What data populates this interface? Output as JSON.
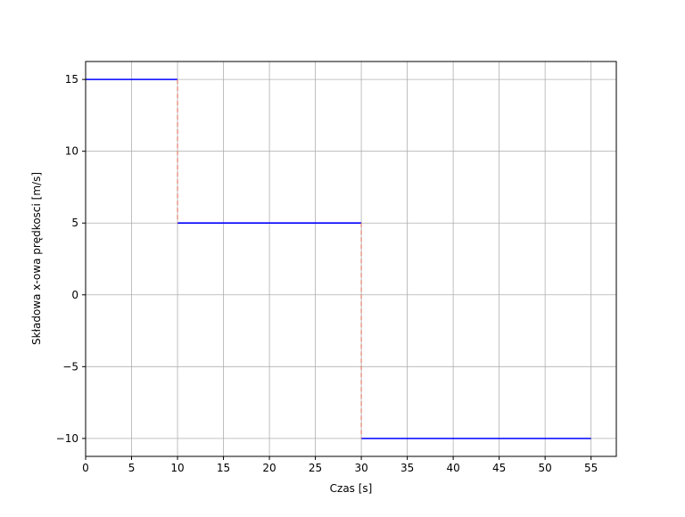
{
  "chart_data": {
    "type": "line",
    "title": "",
    "xlabel": "Czas [s]",
    "ylabel": "Składowa x-owa prędkosci [m/s]",
    "xlim": [
      0,
      57.75
    ],
    "ylim": [
      -11.25,
      16.25
    ],
    "xticks": [
      0,
      5,
      10,
      15,
      20,
      25,
      30,
      35,
      40,
      45,
      50,
      55
    ],
    "yticks": [
      -10,
      -5,
      0,
      5,
      10,
      15
    ],
    "ytick_labels": [
      "−10",
      "−5",
      "0",
      "5",
      "10",
      "15"
    ],
    "grid": true,
    "series": [
      {
        "color": "#0000ff",
        "style": "solid",
        "segments": [
          [
            [
              0,
              15
            ],
            [
              10,
              15
            ]
          ],
          [
            [
              10,
              5
            ],
            [
              30,
              5
            ]
          ],
          [
            [
              30,
              -10
            ],
            [
              55,
              -10
            ]
          ]
        ]
      },
      {
        "color": "#e0806a",
        "style": "dashed",
        "segments": [
          [
            [
              10,
              15
            ],
            [
              10,
              5
            ]
          ],
          [
            [
              30,
              5
            ],
            [
              30,
              -10
            ]
          ]
        ]
      }
    ]
  }
}
